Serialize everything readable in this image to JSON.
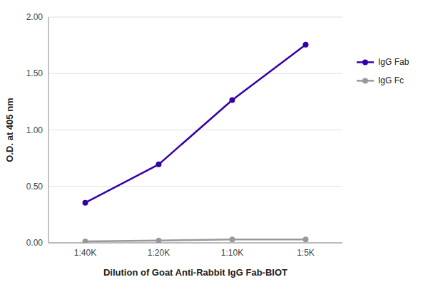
{
  "chart_data": {
    "type": "line",
    "categories": [
      "1:40K",
      "1:20K",
      "1:10K",
      "1:5K"
    ],
    "series": [
      {
        "name": "IgG Fab",
        "color": "#3300AA",
        "marker": "circle",
        "values": [
          0.355,
          0.695,
          1.265,
          1.755
        ]
      },
      {
        "name": "IgG Fc",
        "color": "#999999",
        "marker": "circle",
        "values": [
          0.012,
          0.02,
          0.03,
          0.03
        ]
      }
    ],
    "xlabel": "Dilution of Goat Anti-Rabbit IgG Fab-BIOT",
    "ylabel": "O.D. at 405 nm",
    "ylim": [
      0.0,
      2.0
    ],
    "yticks": [
      {
        "value": 0.0,
        "label": "0.00"
      },
      {
        "value": 0.5,
        "label": "0.50"
      },
      {
        "value": 1.0,
        "label": "1.00"
      },
      {
        "value": 1.5,
        "label": "1.50"
      },
      {
        "value": 2.0,
        "label": "2.00"
      }
    ],
    "grid": true,
    "legend": "right"
  }
}
